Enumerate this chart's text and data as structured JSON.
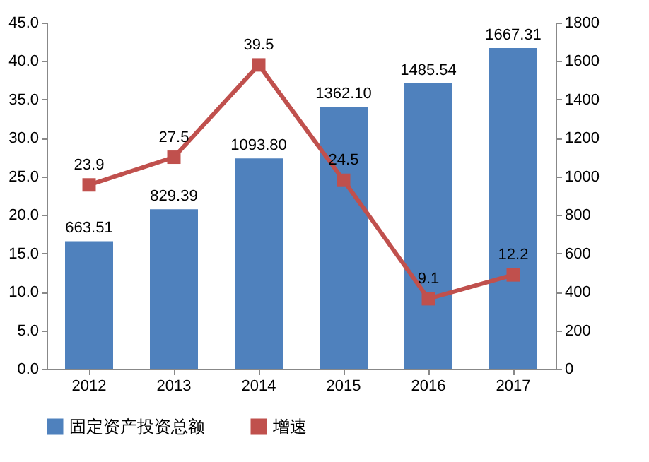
{
  "chart_data": {
    "type": "bar",
    "categories": [
      "2012",
      "2013",
      "2014",
      "2015",
      "2016",
      "2017"
    ],
    "series": [
      {
        "name": "固定资产投资总额",
        "axis": "y2",
        "color": "#4f81bd",
        "values": [
          663.51,
          829.39,
          1093.8,
          1362.1,
          1485.54,
          1667.31
        ],
        "value_labels": [
          "663.51",
          "829.39",
          "1093.80",
          "1362.10",
          "1485.54",
          "1667.31"
        ]
      },
      {
        "name": "增速",
        "type": "line",
        "color": "#c0504d",
        "marker": "square",
        "values": [
          23.9,
          27.5,
          39.5,
          24.5,
          9.1,
          12.2
        ],
        "value_labels": [
          "23.9",
          "27.5",
          "39.5",
          "24.5",
          "9.1",
          "12.2"
        ]
      }
    ],
    "ylim": [
      0,
      45
    ],
    "yticks": [
      {
        "value": 0,
        "label": "0.0"
      },
      {
        "value": 5,
        "label": "5.0"
      },
      {
        "value": 10,
        "label": "10.0"
      },
      {
        "value": 15,
        "label": "15.0"
      },
      {
        "value": 20,
        "label": "20.0"
      },
      {
        "value": 25,
        "label": "25.0"
      },
      {
        "value": 30,
        "label": "30.0"
      },
      {
        "value": 35,
        "label": "35.0"
      },
      {
        "value": 40,
        "label": "40.0"
      },
      {
        "value": 45,
        "label": "45.0"
      }
    ],
    "y2lim": [
      0,
      1800
    ],
    "y2ticks": [
      0,
      200,
      400,
      600,
      800,
      1000,
      1200,
      1400,
      1600,
      1800
    ],
    "legend": "bottom",
    "grid": false
  }
}
